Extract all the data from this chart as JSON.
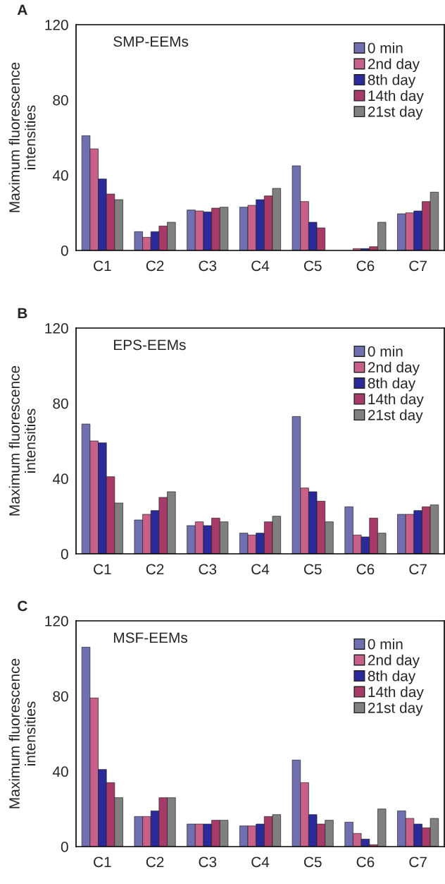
{
  "chart_data": [
    {
      "type": "bar",
      "title": "SMP-EEMs",
      "ylabel": "Maximum fluorescence\nintensities",
      "annotations": [
        "A"
      ],
      "categories": [
        "C1",
        "C2",
        "C3",
        "C4",
        "C5",
        "C6",
        "C7"
      ],
      "ylim": [
        0,
        120
      ],
      "yticks": [
        0,
        40,
        80,
        120
      ],
      "grid": false,
      "legend": "top right",
      "series": [
        {
          "name": "0 min",
          "color": "#7070b0",
          "values": [
            61,
            10,
            21.5,
            23,
            45,
            null,
            19.5
          ]
        },
        {
          "name": "2nd day",
          "color": "#c8608a",
          "values": [
            54,
            7,
            21,
            24,
            26,
            1,
            20
          ]
        },
        {
          "name": "8th day",
          "color": "#2a2a9a",
          "values": [
            38,
            10,
            20.5,
            27,
            15,
            1,
            21
          ]
        },
        {
          "name": "14th day",
          "color": "#a83a6a",
          "values": [
            30,
            13,
            22.5,
            29,
            12,
            2,
            26
          ]
        },
        {
          "name": "21st day",
          "color": "#808080",
          "values": [
            27,
            15,
            23,
            33,
            null,
            15,
            31
          ]
        }
      ]
    },
    {
      "type": "bar",
      "title": "EPS-EEMs",
      "ylabel": "Maximum fluorescence\nintensities",
      "annotations": [
        "B"
      ],
      "categories": [
        "C1",
        "C2",
        "C3",
        "C4",
        "C5",
        "C6",
        "C7"
      ],
      "ylim": [
        0,
        120
      ],
      "yticks": [
        0,
        40,
        80,
        120
      ],
      "grid": false,
      "legend": "top right",
      "series": [
        {
          "name": "0 min",
          "color": "#7070b0",
          "values": [
            69,
            18,
            15,
            11,
            73,
            25,
            21
          ]
        },
        {
          "name": "2nd day",
          "color": "#c8608a",
          "values": [
            60,
            21,
            17,
            10,
            35,
            10,
            21
          ]
        },
        {
          "name": "8th day",
          "color": "#2a2a9a",
          "values": [
            59,
            23,
            15,
            11,
            33,
            9,
            23
          ]
        },
        {
          "name": "14th day",
          "color": "#a83a6a",
          "values": [
            41,
            30,
            19,
            17,
            28,
            19,
            25
          ]
        },
        {
          "name": "21st day",
          "color": "#808080",
          "values": [
            27,
            33,
            17,
            20,
            17,
            11,
            26
          ]
        }
      ]
    },
    {
      "type": "bar",
      "title": "MSF-EEMs",
      "ylabel": "Maximum fluorescence\nintensities",
      "annotations": [
        "C"
      ],
      "categories": [
        "C1",
        "C2",
        "C3",
        "C4",
        "C5",
        "C6",
        "C7"
      ],
      "ylim": [
        0,
        120
      ],
      "yticks": [
        0,
        40,
        80,
        120
      ],
      "grid": false,
      "legend": "top right",
      "series": [
        {
          "name": "0 min",
          "color": "#7070b0",
          "values": [
            106,
            16,
            12,
            11,
            46,
            13,
            19
          ]
        },
        {
          "name": "2nd day",
          "color": "#c8608a",
          "values": [
            79,
            16,
            12,
            11,
            34,
            7,
            15
          ]
        },
        {
          "name": "8th day",
          "color": "#2a2a9a",
          "values": [
            41,
            19,
            12,
            12,
            17,
            4,
            12
          ]
        },
        {
          "name": "14th day",
          "color": "#a83a6a",
          "values": [
            34,
            26,
            14,
            16,
            12,
            1,
            10
          ]
        },
        {
          "name": "21st day",
          "color": "#808080",
          "values": [
            26,
            26,
            14,
            17,
            14,
            20,
            15
          ]
        }
      ]
    }
  ]
}
